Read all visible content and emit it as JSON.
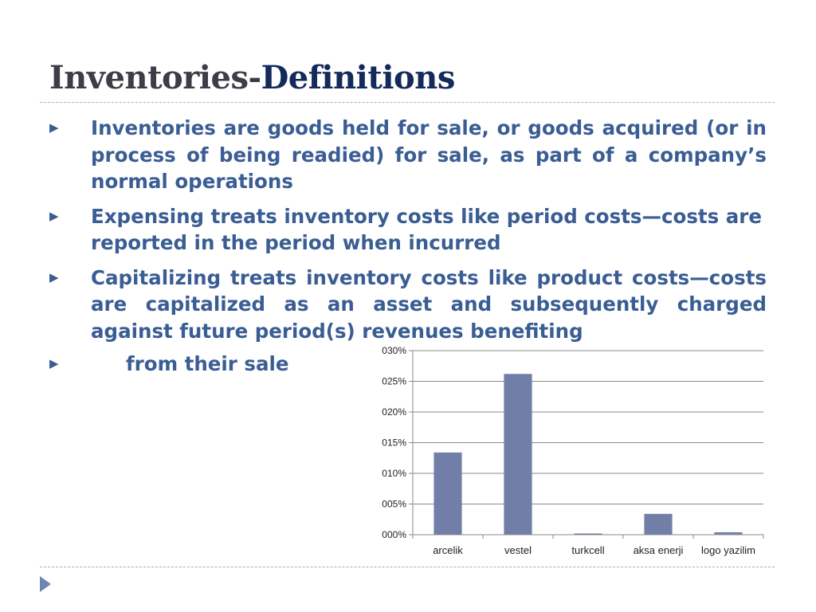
{
  "slide": {
    "title_part1": "Inventories-",
    "title_part2": "Definitions",
    "bullets": [
      "Inventories are goods held for sale, or goods acquired (or in process of being readied) for sale, as part of a company’s normal operations",
      "Expensing treats inventory costs like period costs—costs are reported in the period when incurred",
      "Capitalizing treats inventory costs like product costs—costs are capitalized as an asset and subsequently charged against future period(s) revenues benefiting",
      "from their sale"
    ],
    "bullet_marker": "▶",
    "nav_icon": "triangle-right-icon"
  },
  "chart_data": {
    "type": "bar",
    "categories": [
      "arcelik",
      "vestel",
      "turkcell",
      "aksa enerji",
      "logo yazilim"
    ],
    "values": [
      0.0134,
      0.0262,
      0.0002,
      0.0034,
      0.0004
    ],
    "ytick_labels": [
      "000%",
      "005%",
      "010%",
      "015%",
      "020%",
      "025%",
      "030%"
    ],
    "ytick_values": [
      0,
      0.005,
      0.01,
      0.015,
      0.02,
      0.025,
      0.03
    ],
    "ylim": [
      0,
      0.03
    ],
    "grid": true,
    "bar_color": "#717fa8",
    "title": "",
    "xlabel": "",
    "ylabel": ""
  }
}
